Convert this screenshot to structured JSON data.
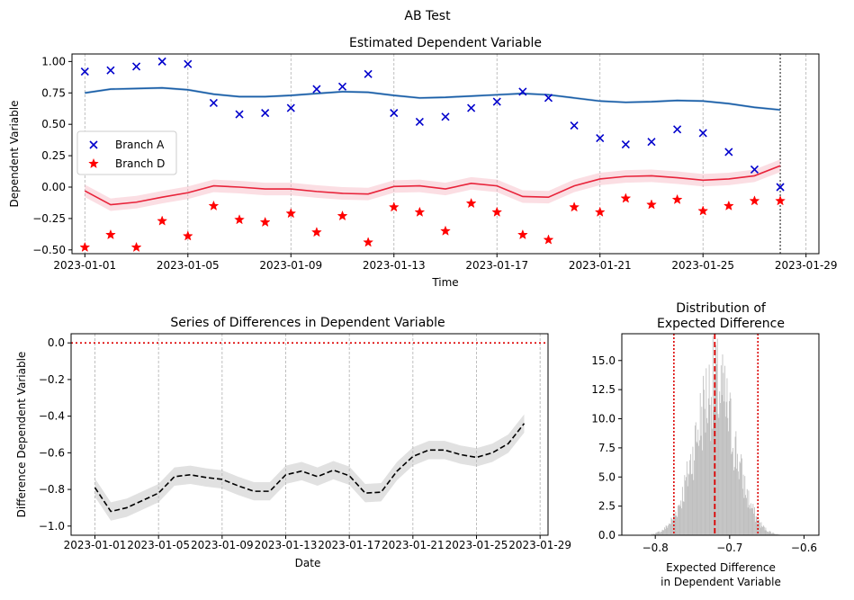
{
  "figure": {
    "suptitle": "AB Test"
  },
  "colors": {
    "branch_a": "#0000cc",
    "branch_a_line": "#1a5fa8",
    "branch_d": "#ff0000",
    "branch_d_line": "#e8233a",
    "branch_d_band": "#f7b6c0",
    "diff_band": "#bdbdbd",
    "hist": "#bdbdbd",
    "ref_red": "#dd0000",
    "grid": "#b0b0b0"
  },
  "chart_data": [
    {
      "type": "line",
      "title": "Estimated Dependent Variable",
      "xlabel": "Time",
      "ylabel": "Dependent Variable",
      "x_dates": [
        "2023-01-01",
        "2023-01-02",
        "2023-01-03",
        "2023-01-04",
        "2023-01-05",
        "2023-01-06",
        "2023-01-07",
        "2023-01-08",
        "2023-01-09",
        "2023-01-10",
        "2023-01-11",
        "2023-01-12",
        "2023-01-13",
        "2023-01-14",
        "2023-01-15",
        "2023-01-16",
        "2023-01-17",
        "2023-01-18",
        "2023-01-19",
        "2023-01-20",
        "2023-01-21",
        "2023-01-22",
        "2023-01-23",
        "2023-01-24",
        "2023-01-25",
        "2023-01-26",
        "2023-01-27",
        "2023-01-28"
      ],
      "xlim": [
        "2023-12-31T00:00",
        "2023-01-29T12:00"
      ],
      "xlim_dates": [
        "2022-12-31T12:00",
        "2023-01-29T12:00"
      ],
      "xticks": [
        "2023-01-01",
        "2023-01-05",
        "2023-01-09",
        "2023-01-13",
        "2023-01-17",
        "2023-01-21",
        "2023-01-25",
        "2023-01-29"
      ],
      "ylim": [
        -0.53,
        1.06
      ],
      "yticks": [
        -0.5,
        -0.25,
        0.0,
        0.25,
        0.5,
        0.75,
        1.0
      ],
      "ytick_labels": [
        "−0.50",
        "−0.25",
        "0.00",
        "0.25",
        "0.50",
        "0.75",
        "1.00"
      ],
      "vline_date": "2023-01-28",
      "legend": {
        "placement": "center-left",
        "entries": [
          "Branch A",
          "Branch D"
        ]
      },
      "series": [
        {
          "name": "Branch A",
          "marker": "x",
          "points": [
            0.92,
            0.93,
            0.96,
            1.0,
            0.98,
            0.67,
            0.58,
            0.59,
            0.63,
            0.78,
            0.8,
            0.9,
            0.59,
            0.52,
            0.56,
            0.63,
            0.68,
            0.76,
            0.71,
            0.49,
            0.39,
            0.34,
            0.36,
            0.46,
            0.43,
            0.28,
            0.14,
            0.0
          ],
          "fit": [
            0.75,
            0.78,
            0.785,
            0.79,
            0.775,
            0.74,
            0.72,
            0.72,
            0.73,
            0.745,
            0.76,
            0.755,
            0.73,
            0.71,
            0.715,
            0.725,
            0.735,
            0.745,
            0.735,
            0.71,
            0.685,
            0.675,
            0.68,
            0.69,
            0.685,
            0.665,
            0.635,
            0.615
          ],
          "band": 0.01
        },
        {
          "name": "Branch D",
          "marker": "star",
          "points": [
            -0.48,
            -0.38,
            -0.48,
            -0.27,
            -0.39,
            -0.15,
            -0.26,
            -0.28,
            -0.21,
            -0.36,
            -0.23,
            -0.44,
            -0.16,
            -0.2,
            -0.35,
            -0.13,
            -0.2,
            -0.38,
            -0.42,
            -0.16,
            -0.2,
            -0.09,
            -0.14,
            -0.1,
            -0.19,
            -0.15,
            -0.11,
            -0.11
          ],
          "fit": [
            -0.03,
            -0.14,
            -0.12,
            -0.08,
            -0.045,
            0.01,
            0.0,
            -0.015,
            -0.015,
            -0.035,
            -0.05,
            -0.055,
            0.005,
            0.01,
            -0.015,
            0.03,
            0.01,
            -0.075,
            -0.08,
            0.01,
            0.065,
            0.085,
            0.09,
            0.075,
            0.055,
            0.065,
            0.09,
            0.17
          ],
          "band": 0.05
        }
      ]
    },
    {
      "type": "line",
      "title": "Series of Differences in Dependent Variable",
      "xlabel": "Date",
      "ylabel": "Difference Dependent Variable",
      "x_dates": [
        "2023-01-01",
        "2023-01-02",
        "2023-01-03",
        "2023-01-04",
        "2023-01-05",
        "2023-01-06",
        "2023-01-07",
        "2023-01-08",
        "2023-01-09",
        "2023-01-10",
        "2023-01-11",
        "2023-01-12",
        "2023-01-13",
        "2023-01-14",
        "2023-01-15",
        "2023-01-16",
        "2023-01-17",
        "2023-01-18",
        "2023-01-19",
        "2023-01-20",
        "2023-01-21",
        "2023-01-22",
        "2023-01-23",
        "2023-01-24",
        "2023-01-25",
        "2023-01-26",
        "2023-01-27",
        "2023-01-28"
      ],
      "xlim_dates": [
        "2022-12-30T12:00",
        "2023-01-29T12:00"
      ],
      "xticks": [
        "2023-01-01",
        "2023-01-05",
        "2023-01-09",
        "2023-01-13",
        "2023-01-17",
        "2023-01-21",
        "2023-01-25",
        "2023-01-29"
      ],
      "ylim": [
        -1.05,
        0.05
      ],
      "yticks": [
        -1.0,
        -0.8,
        -0.6,
        -0.4,
        -0.2,
        0.0
      ],
      "ytick_labels": [
        "−1.0",
        "−0.8",
        "−0.6",
        "−0.4",
        "−0.2",
        "0.0"
      ],
      "hline": 0.0,
      "values": [
        -0.79,
        -0.92,
        -0.9,
        -0.86,
        -0.82,
        -0.73,
        -0.72,
        -0.735,
        -0.745,
        -0.78,
        -0.81,
        -0.81,
        -0.72,
        -0.7,
        -0.73,
        -0.695,
        -0.725,
        -0.82,
        -0.815,
        -0.7,
        -0.62,
        -0.585,
        -0.585,
        -0.61,
        -0.625,
        -0.6,
        -0.55,
        -0.44
      ],
      "band": 0.05
    },
    {
      "type": "histogram",
      "title_lines": [
        "Distribution of",
        "Expected Difference"
      ],
      "xlabel_lines": [
        "Expected Difference",
        "in Dependent Variable"
      ],
      "xlim": [
        -0.845,
        -0.58
      ],
      "xticks": [
        -0.8,
        -0.7,
        -0.6
      ],
      "xtick_labels": [
        "−0.8",
        "−0.7",
        "−0.6"
      ],
      "ylim": [
        0,
        17.3
      ],
      "yticks": [
        0.0,
        2.5,
        5.0,
        7.5,
        10.0,
        12.5,
        15.0
      ],
      "ytick_labels": [
        "0.0",
        "2.5",
        "5.0",
        "7.5",
        "10.0",
        "12.5",
        "15.0"
      ],
      "mean": -0.72,
      "std": 0.027,
      "peak_density": 15.0,
      "lower_bound": -0.775,
      "upper_bound": -0.662
    }
  ]
}
